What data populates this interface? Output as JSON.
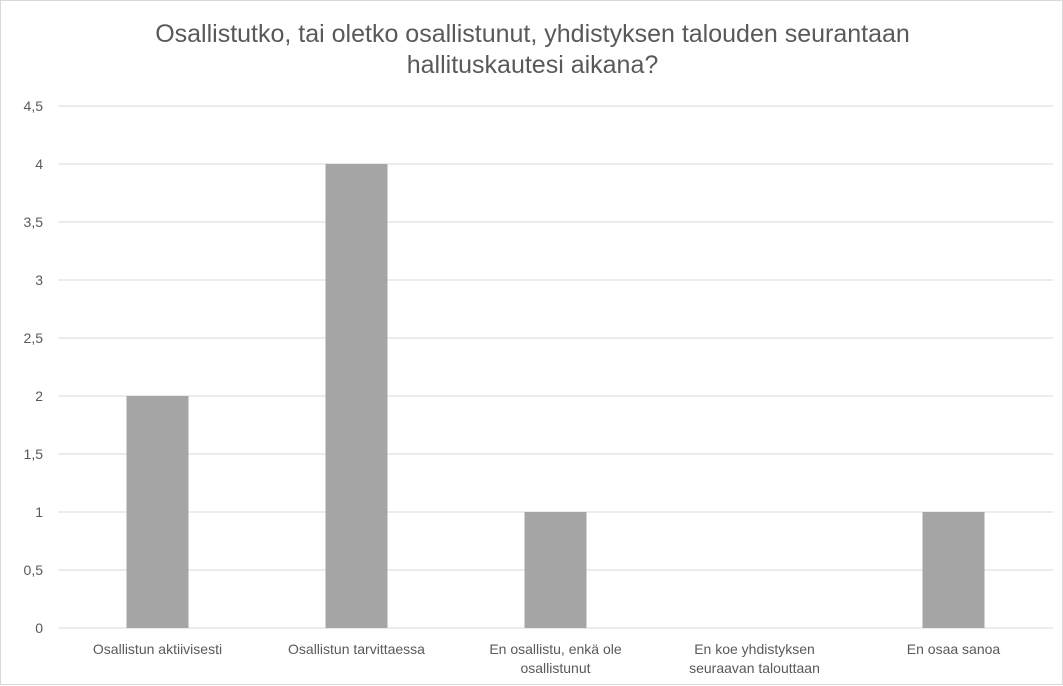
{
  "chart_data": {
    "type": "bar",
    "title_lines": [
      "Osallistutko, tai oletko osallistunut, yhdistyksen talouden seurantaan",
      "hallituskautesi aikana?"
    ],
    "categories": [
      [
        "Osallistun aktiivisesti"
      ],
      [
        "Osallistun tarvittaessa"
      ],
      [
        "En osallistu, enkä ole",
        "osallistunut"
      ],
      [
        "En koe yhdistyksen",
        "seuraavan talouttaan"
      ],
      [
        "En osaa sanoa"
      ]
    ],
    "values": [
      2,
      4,
      1,
      0,
      1
    ],
    "yticks": [
      "0",
      "0,5",
      "1",
      "1,5",
      "2",
      "2,5",
      "3",
      "3,5",
      "4",
      "4,5"
    ],
    "ylim": [
      0,
      4.5
    ],
    "grid": true,
    "bar_color": "#a5a5a5",
    "grid_color": "#d9d9d9",
    "text_color": "#595959"
  }
}
